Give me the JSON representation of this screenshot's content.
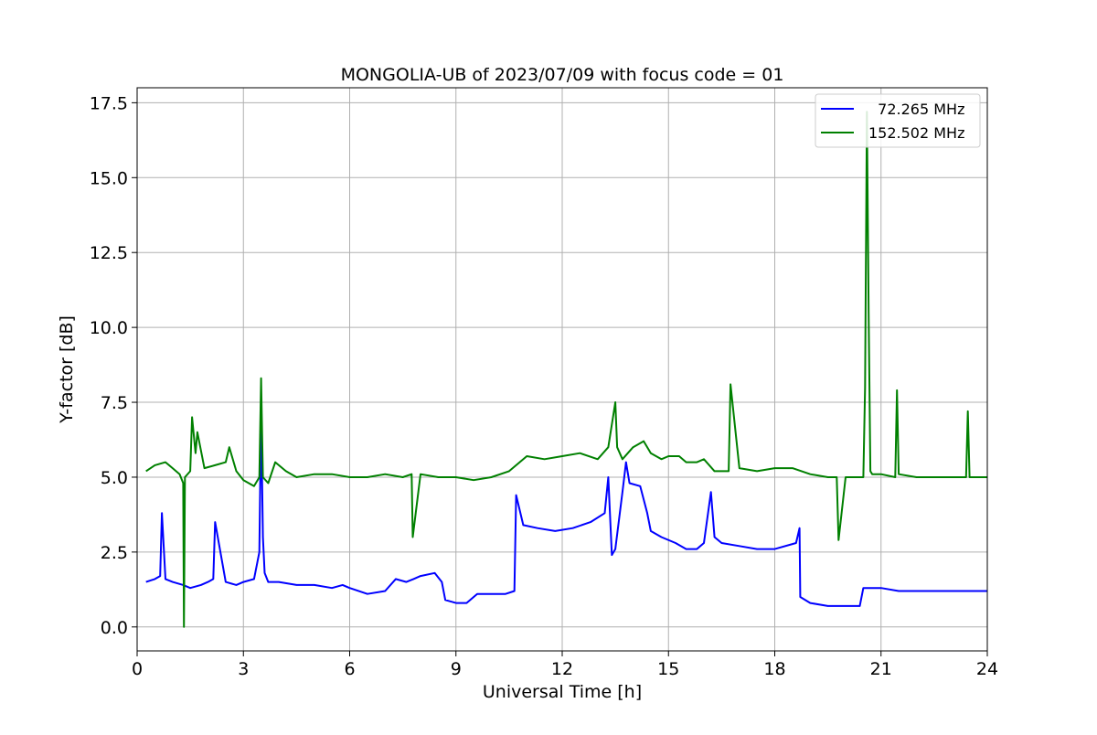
{
  "chart_data": {
    "type": "line",
    "title": "MONGOLIA-UB of 2023/07/09 with focus code = 01",
    "xlabel": "Universal Time [h]",
    "ylabel": "Y-factor [dB]",
    "xlim": [
      0,
      24
    ],
    "ylim": [
      -0.8,
      18.0
    ],
    "xticks": [
      0,
      3,
      6,
      9,
      12,
      15,
      18,
      21,
      24
    ],
    "xtick_labels": [
      "0",
      "3",
      "6",
      "9",
      "12",
      "15",
      "18",
      "21",
      "24"
    ],
    "yticks": [
      0.0,
      2.5,
      5.0,
      7.5,
      10.0,
      12.5,
      15.0,
      17.5
    ],
    "ytick_labels": [
      "0.0",
      "2.5",
      "5.0",
      "7.5",
      "10.0",
      "12.5",
      "15.0",
      "17.5"
    ],
    "grid": true,
    "legend_position": "top-right",
    "series": [
      {
        "name": "  72.265 MHz",
        "color": "#0000ff",
        "x": [
          0.25,
          0.5,
          0.65,
          0.7,
          0.8,
          1.0,
          1.3,
          1.5,
          1.8,
          2.0,
          2.15,
          2.2,
          2.5,
          2.8,
          3.0,
          3.3,
          3.45,
          3.5,
          3.55,
          3.6,
          3.7,
          4.0,
          4.5,
          5.0,
          5.5,
          5.8,
          6.0,
          6.5,
          7.0,
          7.3,
          7.6,
          7.8,
          8.0,
          8.4,
          8.6,
          8.7,
          9.0,
          9.3,
          9.6,
          10.0,
          10.4,
          10.65,
          10.7,
          10.9,
          11.3,
          11.8,
          12.3,
          12.8,
          13.2,
          13.3,
          13.4,
          13.5,
          13.7,
          13.8,
          13.9,
          14.2,
          14.4,
          14.5,
          14.8,
          15.2,
          15.5,
          15.8,
          16.0,
          16.2,
          16.3,
          16.5,
          17.0,
          17.5,
          18.0,
          18.6,
          18.7,
          18.72,
          19.0,
          19.5,
          20.0,
          20.4,
          20.5,
          21.0,
          21.5,
          22.0,
          22.5,
          23.0,
          23.5,
          24.0
        ],
        "y": [
          1.5,
          1.6,
          1.7,
          3.8,
          1.6,
          1.5,
          1.4,
          1.3,
          1.4,
          1.5,
          1.6,
          3.5,
          1.5,
          1.4,
          1.5,
          1.6,
          2.5,
          7.2,
          3.0,
          1.8,
          1.5,
          1.5,
          1.4,
          1.4,
          1.3,
          1.4,
          1.3,
          1.1,
          1.2,
          1.6,
          1.5,
          1.6,
          1.7,
          1.8,
          1.5,
          0.9,
          0.8,
          0.8,
          1.1,
          1.1,
          1.1,
          1.2,
          4.4,
          3.4,
          3.3,
          3.2,
          3.3,
          3.5,
          3.8,
          5.0,
          2.4,
          2.6,
          4.5,
          5.5,
          4.8,
          4.7,
          3.8,
          3.2,
          3.0,
          2.8,
          2.6,
          2.6,
          2.8,
          4.5,
          3.0,
          2.8,
          2.7,
          2.6,
          2.6,
          2.8,
          3.3,
          1.0,
          0.8,
          0.7,
          0.7,
          0.7,
          1.3,
          1.3,
          1.2,
          1.2,
          1.2,
          1.2,
          1.2,
          1.2
        ]
      },
      {
        "name": "152.502 MHz",
        "color": "#008000",
        "x": [
          0.25,
          0.5,
          0.8,
          1.0,
          1.2,
          1.3,
          1.32,
          1.35,
          1.5,
          1.55,
          1.65,
          1.7,
          1.9,
          2.2,
          2.5,
          2.6,
          2.8,
          3.0,
          3.3,
          3.45,
          3.5,
          3.55,
          3.7,
          3.9,
          4.2,
          4.5,
          5.0,
          5.5,
          6.0,
          6.5,
          7.0,
          7.5,
          7.75,
          7.78,
          8.0,
          8.5,
          9.0,
          9.5,
          10.0,
          10.5,
          11.0,
          11.5,
          12.0,
          12.5,
          13.0,
          13.3,
          13.5,
          13.55,
          13.7,
          14.0,
          14.3,
          14.5,
          14.8,
          15.0,
          15.3,
          15.5,
          15.8,
          16.0,
          16.3,
          16.5,
          16.7,
          16.75,
          17.0,
          17.5,
          18.0,
          18.5,
          19.0,
          19.5,
          19.75,
          19.8,
          20.0,
          20.3,
          20.5,
          20.55,
          20.6,
          20.65,
          20.7,
          20.75,
          21.0,
          21.4,
          21.45,
          21.5,
          22.0,
          22.5,
          23.0,
          23.4,
          23.45,
          23.5,
          24.0
        ],
        "y": [
          5.2,
          5.4,
          5.5,
          5.3,
          5.1,
          4.8,
          0.0,
          5.0,
          5.2,
          7.0,
          5.8,
          6.5,
          5.3,
          5.4,
          5.5,
          6.0,
          5.2,
          4.9,
          4.7,
          5.0,
          8.3,
          5.0,
          4.8,
          5.5,
          5.2,
          5.0,
          5.1,
          5.1,
          5.0,
          5.0,
          5.1,
          5.0,
          5.1,
          3.0,
          5.1,
          5.0,
          5.0,
          4.9,
          5.0,
          5.2,
          5.7,
          5.6,
          5.7,
          5.8,
          5.6,
          6.0,
          7.5,
          6.0,
          5.6,
          6.0,
          6.2,
          5.8,
          5.6,
          5.7,
          5.7,
          5.5,
          5.5,
          5.6,
          5.2,
          5.2,
          5.2,
          8.1,
          5.3,
          5.2,
          5.3,
          5.3,
          5.1,
          5.0,
          5.0,
          2.9,
          5.0,
          5.0,
          5.0,
          8.0,
          17.2,
          10.5,
          5.2,
          5.1,
          5.1,
          5.0,
          7.9,
          5.1,
          5.0,
          5.0,
          5.0,
          5.0,
          7.2,
          5.0,
          5.0
        ]
      }
    ]
  }
}
